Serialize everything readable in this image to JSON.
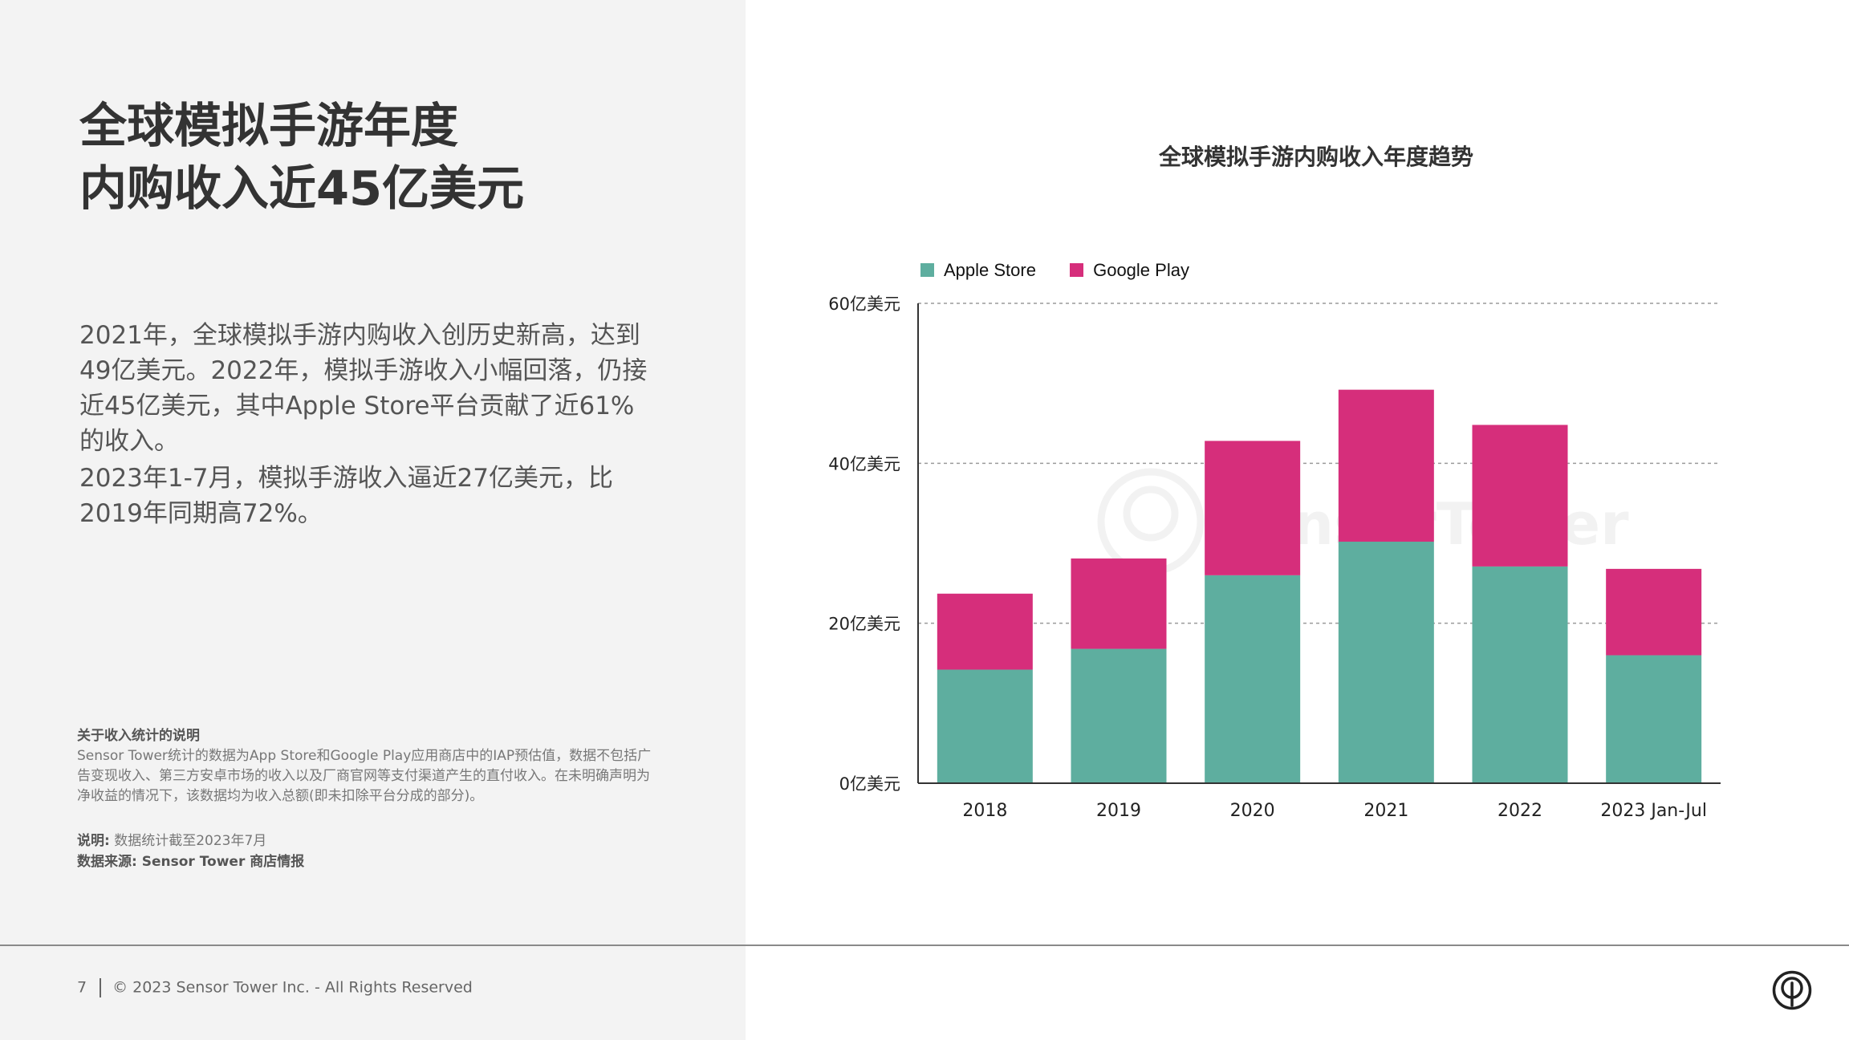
{
  "colors": {
    "apple": "#5eae9f",
    "google": "#d62e7b",
    "panel_bg": "#f3f3f3"
  },
  "page": {
    "title_lines": [
      "全球模拟手游年度",
      "内购收入近45亿美元"
    ],
    "paragraph1": "2021年，全球模拟手游内购收入创历史新高，达到49亿美元。2022年，模拟手游收入小幅回落，仍接近45亿美元，其中Apple Store平台贡献了近61%的收入。",
    "paragraph2": "2023年1-7月，模拟手游收入逼近27亿美元，比2019年同期高72%。",
    "note_heading": "关于收入统计的说明",
    "note_body": "Sensor Tower统计的数据为App Store和Google Play应用商店中的IAP预估值，数据不包括广告变现收入、第三方安卓市场的收入以及厂商官网等支付渠道产生的直付收入。在未明确声明为净收益的情况下，该数据均为收入总额(即未扣除平台分成的部分)。",
    "explain_label": "说明:",
    "explain_text": "数据统计截至2023年7月",
    "source": "数据来源: Sensor Tower 商店情报"
  },
  "footer": {
    "page_number": "7",
    "copyright": "© 2023 Sensor Tower Inc. - All Rights Reserved"
  },
  "logo_icon": "sensor-tower-logo-icon",
  "chart_data": {
    "type": "bar",
    "stacked": true,
    "title": "全球模拟手游内购收入年度趋势",
    "categories": [
      "2018",
      "2019",
      "2020",
      "2021",
      "2022",
      "2023 Jan-Jul"
    ],
    "series": [
      {
        "name": "Apple Store",
        "values": [
          14.2,
          16.8,
          26.0,
          30.2,
          27.1,
          16.0
        ]
      },
      {
        "name": "Google Play",
        "values": [
          9.5,
          11.3,
          16.8,
          19.0,
          17.7,
          10.8
        ]
      }
    ],
    "ylim": [
      0,
      60
    ],
    "yticks": [
      0,
      20,
      40,
      60
    ],
    "ytick_labels": [
      "0亿美元",
      "20亿美元",
      "40亿美元",
      "60亿美元"
    ],
    "xlabel": "",
    "ylabel": "",
    "grid": true,
    "legend": "top-left",
    "watermark": "SensorTower"
  }
}
